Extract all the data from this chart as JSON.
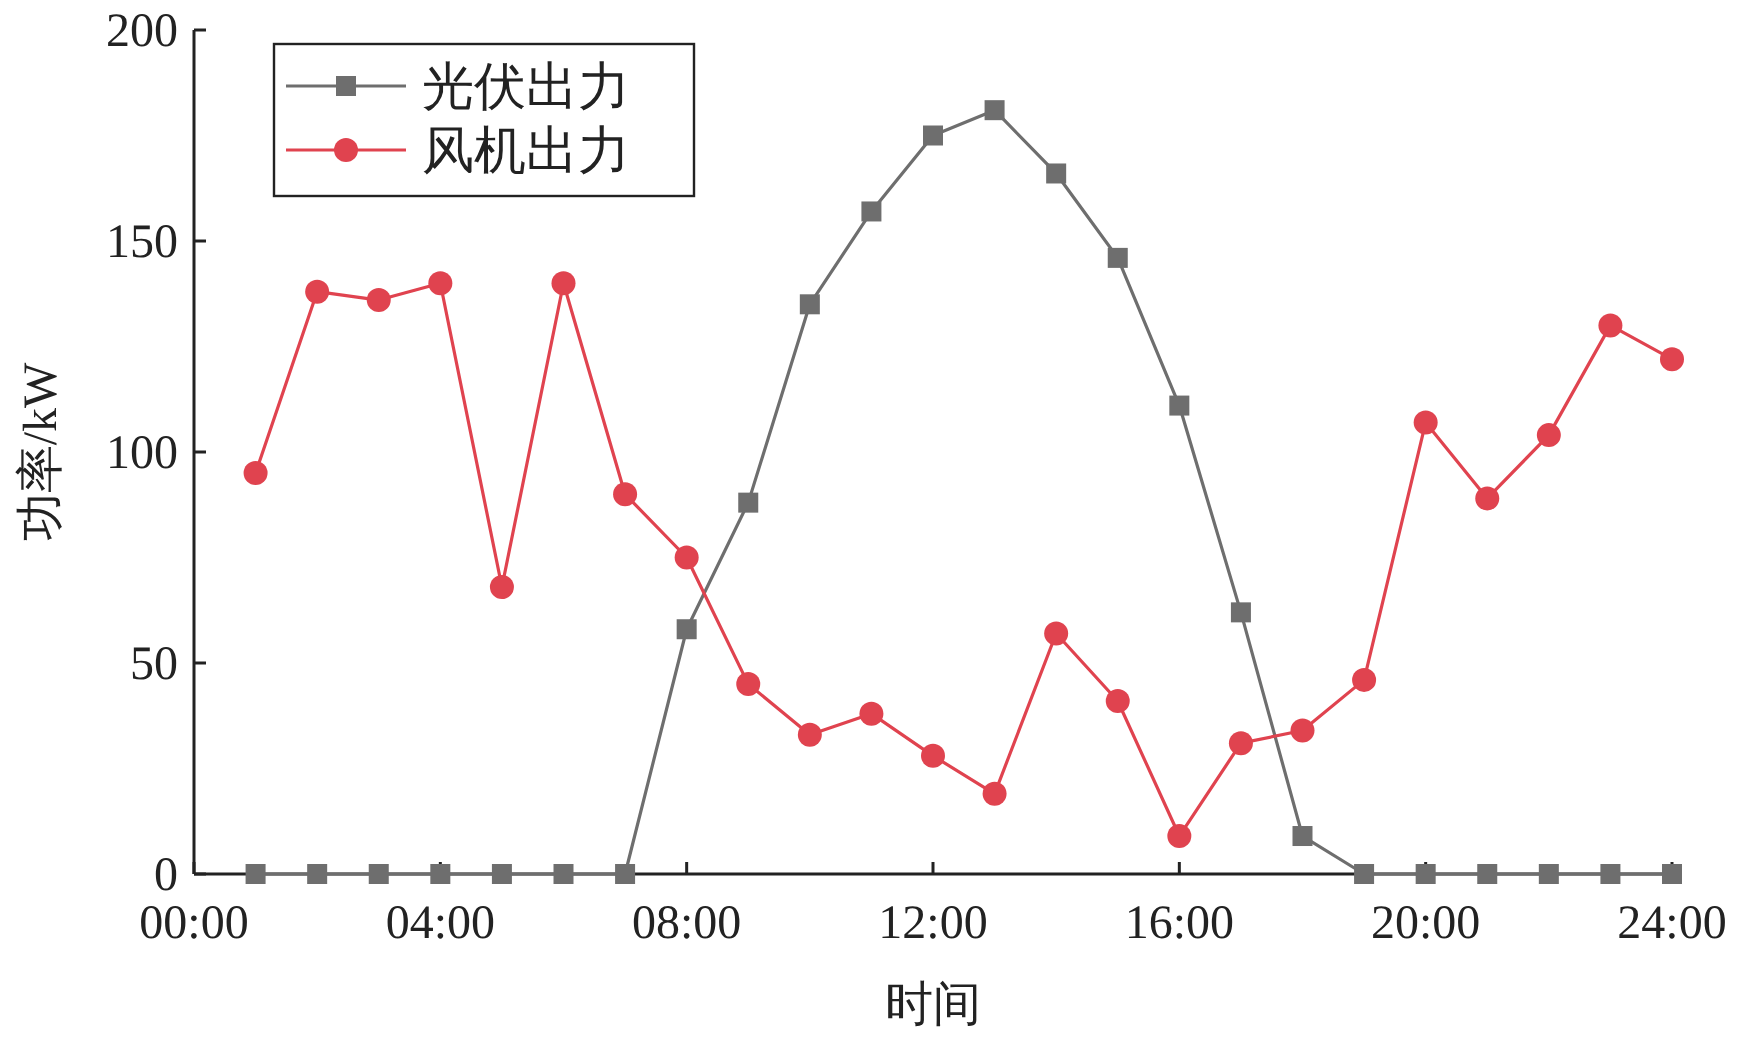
{
  "chart_data": {
    "type": "line",
    "xlabel": "时间",
    "ylabel": "功率/kW",
    "x": [
      1,
      2,
      3,
      4,
      5,
      6,
      7,
      8,
      9,
      10,
      11,
      12,
      13,
      14,
      15,
      16,
      17,
      18,
      19,
      20,
      21,
      22,
      23,
      24
    ],
    "series": [
      {
        "name": "光伏出力",
        "color": "#6e6e6e",
        "marker": "square",
        "values": [
          0,
          0,
          0,
          0,
          0,
          0,
          0,
          58,
          88,
          135,
          157,
          175,
          181,
          166,
          146,
          111,
          62,
          9,
          0,
          0,
          0,
          0,
          0,
          0
        ]
      },
      {
        "name": "风机出力",
        "color": "#e0434f",
        "marker": "circle",
        "values": [
          95,
          138,
          136,
          140,
          68,
          140,
          90,
          75,
          45,
          33,
          38,
          28,
          19,
          57,
          41,
          9,
          31,
          34,
          46,
          107,
          89,
          104,
          130,
          122
        ]
      }
    ],
    "xlim": [
      0,
      24
    ],
    "xticks": [
      {
        "value": 0,
        "label": "00:00"
      },
      {
        "value": 4,
        "label": "04:00"
      },
      {
        "value": 8,
        "label": "08:00"
      },
      {
        "value": 12,
        "label": "12:00"
      },
      {
        "value": 16,
        "label": "16:00"
      },
      {
        "value": 20,
        "label": "20:00"
      },
      {
        "value": 24,
        "label": "24:00"
      }
    ],
    "ylim": [
      0,
      200
    ],
    "yticks": [
      0,
      50,
      100,
      150,
      200
    ],
    "grid": false,
    "legend": "top left",
    "line_style": "solid"
  }
}
